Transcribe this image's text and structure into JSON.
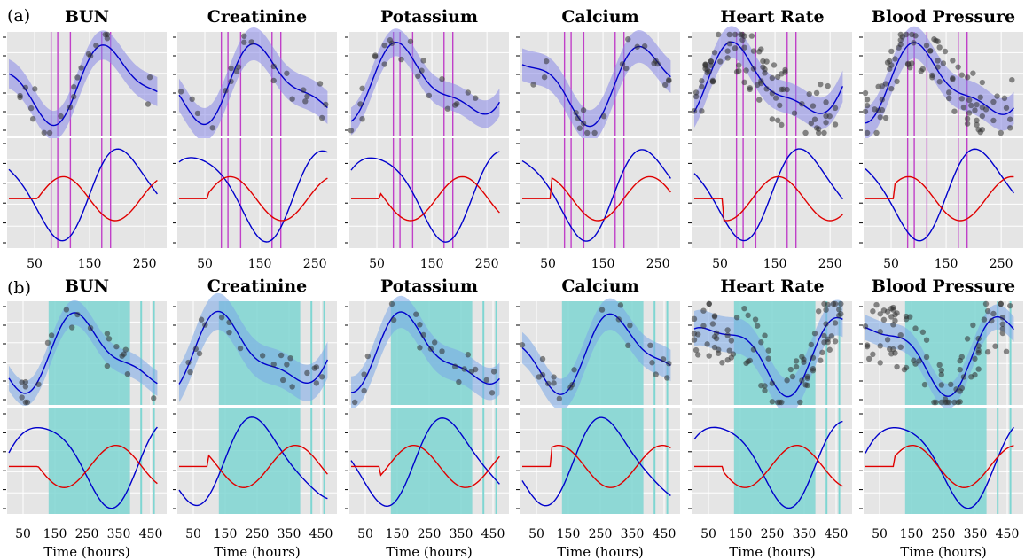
{
  "panel_labels": [
    "(a)",
    "(b)"
  ],
  "chart_data": [
    {
      "type": "line",
      "label": "(a)",
      "titles": [
        "BUN",
        "Creatinine",
        "Potassium",
        "Calcium",
        "Heart Rate",
        "Blood Pressure"
      ],
      "xlim": [
        0,
        290
      ],
      "xticks": [
        50,
        150,
        250
      ],
      "xlabel": "",
      "grid": true,
      "event_color": "#c040c8",
      "event_lines": [
        [
          80,
          92,
          115,
          172,
          188
        ],
        [
          80,
          92,
          115,
          172,
          188
        ],
        [
          80,
          92,
          115,
          172,
          188
        ],
        [
          80,
          92,
          115,
          172,
          188
        ],
        [
          80,
          92,
          115,
          172,
          188
        ],
        [
          80,
          92,
          115,
          172,
          188
        ]
      ],
      "series_colors": {
        "mean": "#0000cc",
        "band": "#8888e8",
        "points": "#303030",
        "second": "#0000cc",
        "third": "#e00000"
      }
    },
    {
      "type": "line",
      "label": "(b)",
      "titles": [
        "BUN",
        "Creatinine",
        "Potassium",
        "Calcium",
        "Heart Rate",
        "Blood Pressure"
      ],
      "xlim": [
        0,
        500
      ],
      "xticks": [
        50,
        150,
        250,
        350,
        450
      ],
      "xlabel": "Time (hours)",
      "grid": true,
      "shade_color": "#7fd6d2",
      "shaded_regions": [
        [
          130,
          385
        ],
        [
          130,
          385
        ],
        [
          130,
          385
        ],
        [
          130,
          385
        ],
        [
          130,
          385
        ],
        [
          130,
          385
        ]
      ],
      "extra_lines": [
        420,
        460
      ],
      "series_colors": {
        "mean": "#0000cc",
        "band": "#7aa8e8",
        "points": "#303030",
        "second": "#0000cc",
        "third": "#e00000"
      }
    }
  ]
}
